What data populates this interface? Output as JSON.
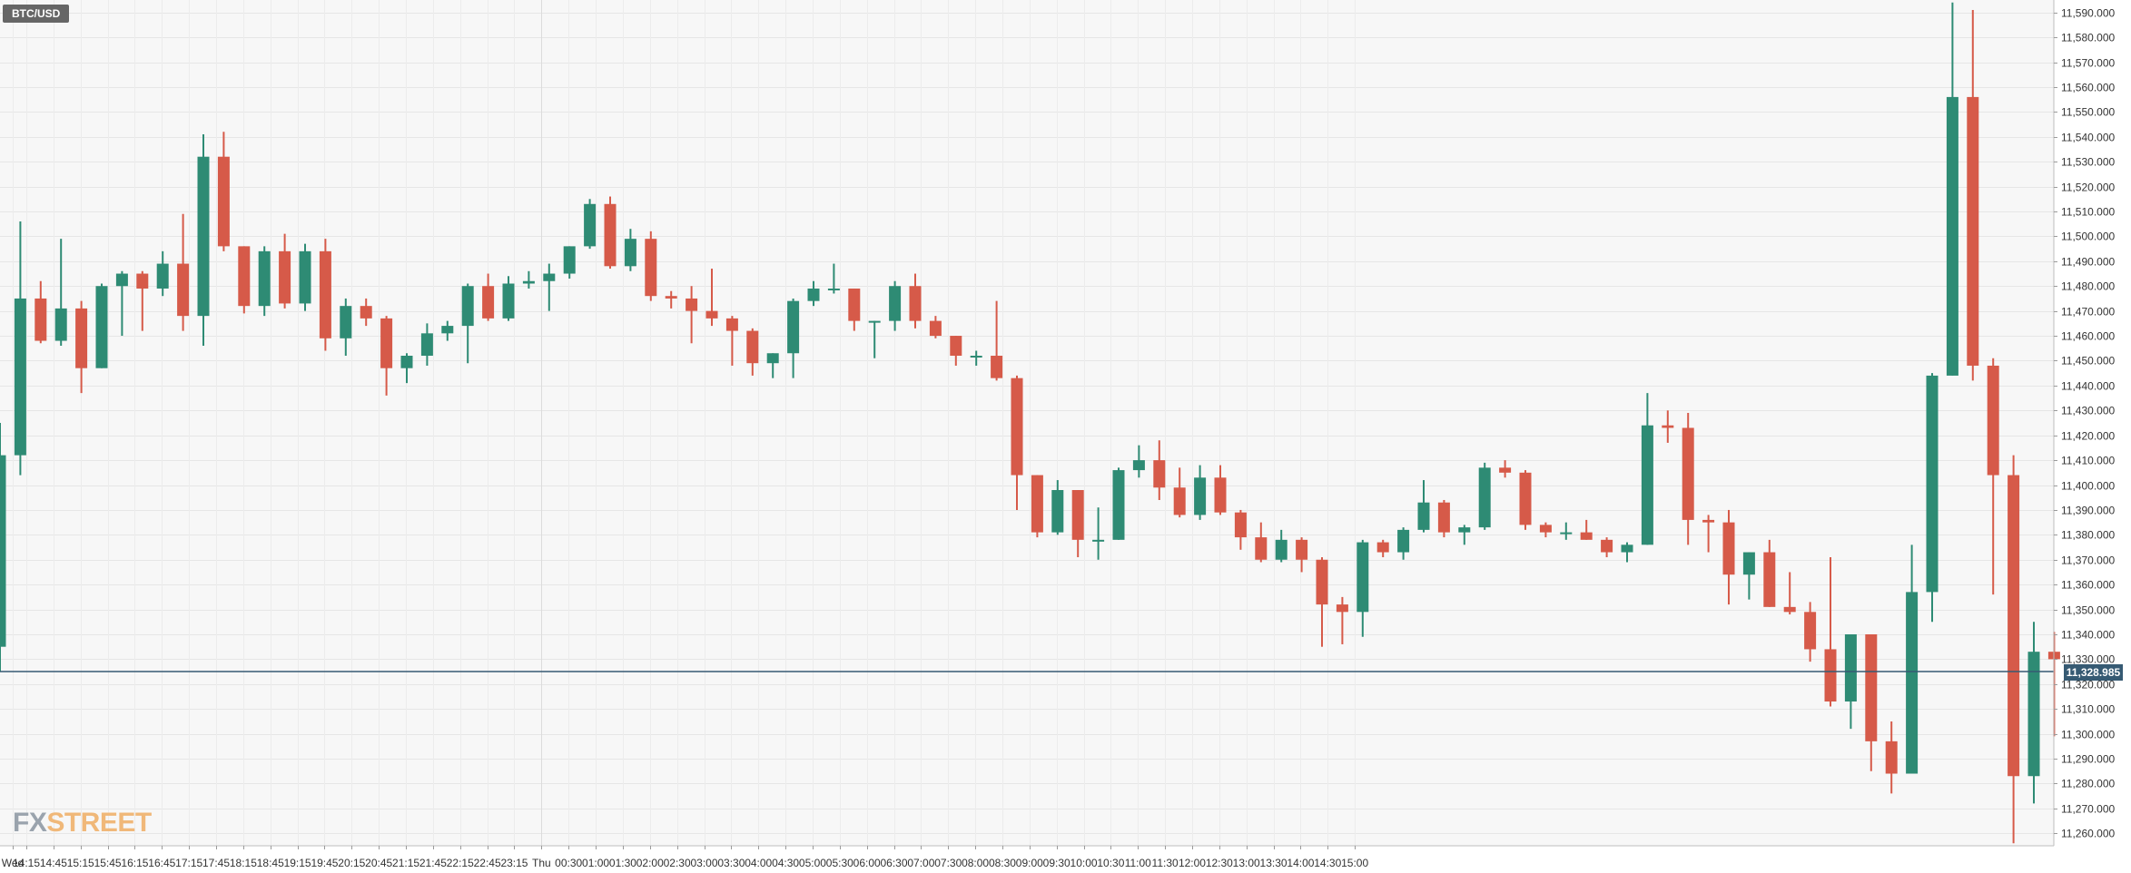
{
  "symbol": "BTC/USD",
  "logo": {
    "fx": "FX",
    "street": "STREET"
  },
  "colors": {
    "up": "#2e8b74",
    "down": "#d65a49",
    "last_price_line": "#365a73",
    "grid": "#e8e8e8",
    "background": "#f7f7f7"
  },
  "chart_data": {
    "type": "candlestick",
    "title": "BTC/USD",
    "interval_minutes": 30,
    "ylim": [
      11255,
      11595
    ],
    "y_ticks": [
      11260,
      11270,
      11280,
      11290,
      11300,
      11310,
      11320,
      11330,
      11340,
      11350,
      11360,
      11370,
      11380,
      11390,
      11400,
      11410,
      11420,
      11430,
      11440,
      11450,
      11460,
      11470,
      11480,
      11490,
      11500,
      11510,
      11520,
      11530,
      11540,
      11550,
      11560,
      11570,
      11580,
      11590
    ],
    "last_price": "11,328.985",
    "x_labels": [
      "Wed",
      "14:15",
      "14:45",
      "15:15",
      "15:45",
      "16:15",
      "16:45",
      "17:15",
      "17:45",
      "18:15",
      "18:45",
      "19:15",
      "19:45",
      "20:15",
      "20:45",
      "21:15",
      "21:45",
      "22:15",
      "22:45",
      "23:15",
      "Thu",
      "00:30",
      "01:00",
      "01:30",
      "02:00",
      "02:30",
      "03:00",
      "03:30",
      "04:00",
      "04:30",
      "05:00",
      "05:30",
      "06:00",
      "06:30",
      "07:00",
      "07:30",
      "08:00",
      "08:30",
      "09:00",
      "09:30",
      "10:00",
      "10:30",
      "11:00",
      "11:30",
      "12:00",
      "12:30",
      "13:00",
      "13:30",
      "14:00",
      "14:30",
      "15:00"
    ],
    "candles": [
      {
        "o": 11335,
        "h": 11425,
        "l": 11325,
        "c": 11412
      },
      {
        "o": 11412,
        "h": 11506,
        "l": 11404,
        "c": 11475
      },
      {
        "o": 11475,
        "h": 11482,
        "l": 11457,
        "c": 11458
      },
      {
        "o": 11458,
        "h": 11499,
        "l": 11456,
        "c": 11471
      },
      {
        "o": 11471,
        "h": 11474,
        "l": 11437,
        "c": 11447
      },
      {
        "o": 11447,
        "h": 11481,
        "l": 11447,
        "c": 11480
      },
      {
        "o": 11480,
        "h": 11486,
        "l": 11460,
        "c": 11485
      },
      {
        "o": 11485,
        "h": 11486,
        "l": 11462,
        "c": 11479
      },
      {
        "o": 11479,
        "h": 11494,
        "l": 11476,
        "c": 11489
      },
      {
        "o": 11489,
        "h": 11509,
        "l": 11462,
        "c": 11468
      },
      {
        "o": 11468,
        "h": 11541,
        "l": 11456,
        "c": 11532
      },
      {
        "o": 11532,
        "h": 11542,
        "l": 11494,
        "c": 11496
      },
      {
        "o": 11496,
        "h": 11496,
        "l": 11469,
        "c": 11472
      },
      {
        "o": 11472,
        "h": 11496,
        "l": 11468,
        "c": 11494
      },
      {
        "o": 11494,
        "h": 11501,
        "l": 11471,
        "c": 11473
      },
      {
        "o": 11473,
        "h": 11497,
        "l": 11470,
        "c": 11494
      },
      {
        "o": 11494,
        "h": 11499,
        "l": 11454,
        "c": 11459
      },
      {
        "o": 11459,
        "h": 11475,
        "l": 11452,
        "c": 11472
      },
      {
        "o": 11472,
        "h": 11475,
        "l": 11464,
        "c": 11467
      },
      {
        "o": 11467,
        "h": 11468,
        "l": 11436,
        "c": 11447
      },
      {
        "o": 11447,
        "h": 11453,
        "l": 11441,
        "c": 11452
      },
      {
        "o": 11452,
        "h": 11465,
        "l": 11448,
        "c": 11461
      },
      {
        "o": 11461,
        "h": 11466,
        "l": 11458,
        "c": 11464
      },
      {
        "o": 11464,
        "h": 11481,
        "l": 11449,
        "c": 11480
      },
      {
        "o": 11480,
        "h": 11485,
        "l": 11466,
        "c": 11467
      },
      {
        "o": 11467,
        "h": 11484,
        "l": 11466,
        "c": 11481
      },
      {
        "o": 11481,
        "h": 11486,
        "l": 11479,
        "c": 11482
      },
      {
        "o": 11482,
        "h": 11489,
        "l": 11470,
        "c": 11485
      },
      {
        "o": 11485,
        "h": 11496,
        "l": 11483,
        "c": 11496
      },
      {
        "o": 11496,
        "h": 11515,
        "l": 11495,
        "c": 11513
      },
      {
        "o": 11513,
        "h": 11516,
        "l": 11487,
        "c": 11488
      },
      {
        "o": 11488,
        "h": 11503,
        "l": 11486,
        "c": 11499
      },
      {
        "o": 11499,
        "h": 11502,
        "l": 11474,
        "c": 11476
      },
      {
        "o": 11476,
        "h": 11478,
        "l": 11471,
        "c": 11475
      },
      {
        "o": 11475,
        "h": 11480,
        "l": 11457,
        "c": 11470
      },
      {
        "o": 11470,
        "h": 11487,
        "l": 11464,
        "c": 11467
      },
      {
        "o": 11467,
        "h": 11468,
        "l": 11448,
        "c": 11462
      },
      {
        "o": 11462,
        "h": 11463,
        "l": 11444,
        "c": 11449
      },
      {
        "o": 11449,
        "h": 11453,
        "l": 11443,
        "c": 11453
      },
      {
        "o": 11453,
        "h": 11475,
        "l": 11443,
        "c": 11474
      },
      {
        "o": 11474,
        "h": 11482,
        "l": 11472,
        "c": 11479
      },
      {
        "o": 11479,
        "h": 11489,
        "l": 11477,
        "c": 11479
      },
      {
        "o": 11479,
        "h": 11479,
        "l": 11462,
        "c": 11466
      },
      {
        "o": 11466,
        "h": 11466,
        "l": 11451,
        "c": 11466
      },
      {
        "o": 11466,
        "h": 11482,
        "l": 11462,
        "c": 11480
      },
      {
        "o": 11480,
        "h": 11485,
        "l": 11463,
        "c": 11466
      },
      {
        "o": 11466,
        "h": 11468,
        "l": 11459,
        "c": 11460
      },
      {
        "o": 11460,
        "h": 11460,
        "l": 11448,
        "c": 11452
      },
      {
        "o": 11452,
        "h": 11454,
        "l": 11448,
        "c": 11452
      },
      {
        "o": 11452,
        "h": 11474,
        "l": 11442,
        "c": 11443
      },
      {
        "o": 11443,
        "h": 11444,
        "l": 11390,
        "c": 11404
      },
      {
        "o": 11404,
        "h": 11404,
        "l": 11379,
        "c": 11381
      },
      {
        "o": 11381,
        "h": 11402,
        "l": 11380,
        "c": 11398
      },
      {
        "o": 11398,
        "h": 11398,
        "l": 11371,
        "c": 11378
      },
      {
        "o": 11378,
        "h": 11391,
        "l": 11370,
        "c": 11378
      },
      {
        "o": 11378,
        "h": 11407,
        "l": 11378,
        "c": 11406
      },
      {
        "o": 11406,
        "h": 11416,
        "l": 11403,
        "c": 11410
      },
      {
        "o": 11410,
        "h": 11418,
        "l": 11394,
        "c": 11399
      },
      {
        "o": 11399,
        "h": 11407,
        "l": 11387,
        "c": 11388
      },
      {
        "o": 11388,
        "h": 11408,
        "l": 11386,
        "c": 11403
      },
      {
        "o": 11403,
        "h": 11408,
        "l": 11388,
        "c": 11389
      },
      {
        "o": 11389,
        "h": 11390,
        "l": 11374,
        "c": 11379
      },
      {
        "o": 11379,
        "h": 11385,
        "l": 11369,
        "c": 11370
      },
      {
        "o": 11370,
        "h": 11382,
        "l": 11369,
        "c": 11378
      },
      {
        "o": 11378,
        "h": 11379,
        "l": 11365,
        "c": 11370
      },
      {
        "o": 11370,
        "h": 11371,
        "l": 11335,
        "c": 11352
      },
      {
        "o": 11352,
        "h": 11355,
        "l": 11336,
        "c": 11349
      },
      {
        "o": 11349,
        "h": 11378,
        "l": 11339,
        "c": 11377
      },
      {
        "o": 11377,
        "h": 11378,
        "l": 11371,
        "c": 11373
      },
      {
        "o": 11373,
        "h": 11383,
        "l": 11370,
        "c": 11382
      },
      {
        "o": 11382,
        "h": 11402,
        "l": 11381,
        "c": 11393
      },
      {
        "o": 11393,
        "h": 11394,
        "l": 11379,
        "c": 11381
      },
      {
        "o": 11381,
        "h": 11384,
        "l": 11376,
        "c": 11383
      },
      {
        "o": 11383,
        "h": 11409,
        "l": 11382,
        "c": 11407
      },
      {
        "o": 11407,
        "h": 11410,
        "l": 11403,
        "c": 11405
      },
      {
        "o": 11405,
        "h": 11406,
        "l": 11382,
        "c": 11384
      },
      {
        "o": 11384,
        "h": 11385,
        "l": 11379,
        "c": 11381
      },
      {
        "o": 11381,
        "h": 11385,
        "l": 11378,
        "c": 11381
      },
      {
        "o": 11381,
        "h": 11386,
        "l": 11378,
        "c": 11378
      },
      {
        "o": 11378,
        "h": 11379,
        "l": 11371,
        "c": 11373
      },
      {
        "o": 11373,
        "h": 11377,
        "l": 11369,
        "c": 11376
      },
      {
        "o": 11376,
        "h": 11437,
        "l": 11376,
        "c": 11424
      },
      {
        "o": 11424,
        "h": 11430,
        "l": 11417,
        "c": 11423
      },
      {
        "o": 11423,
        "h": 11429,
        "l": 11376,
        "c": 11386
      },
      {
        "o": 11386,
        "h": 11388,
        "l": 11373,
        "c": 11385
      },
      {
        "o": 11385,
        "h": 11390,
        "l": 11352,
        "c": 11364
      },
      {
        "o": 11364,
        "h": 11373,
        "l": 11354,
        "c": 11373
      },
      {
        "o": 11373,
        "h": 11378,
        "l": 11351,
        "c": 11351
      },
      {
        "o": 11351,
        "h": 11365,
        "l": 11348,
        "c": 11349
      },
      {
        "o": 11349,
        "h": 11353,
        "l": 11329,
        "c": 11334
      },
      {
        "o": 11334,
        "h": 11371,
        "l": 11311,
        "c": 11313
      },
      {
        "o": 11313,
        "h": 11340,
        "l": 11302,
        "c": 11340
      },
      {
        "o": 11340,
        "h": 11340,
        "l": 11285,
        "c": 11297
      },
      {
        "o": 11297,
        "h": 11305,
        "l": 11276,
        "c": 11284
      },
      {
        "o": 11284,
        "h": 11376,
        "l": 11284,
        "c": 11357
      },
      {
        "o": 11357,
        "h": 11445,
        "l": 11345,
        "c": 11444
      },
      {
        "o": 11444,
        "h": 11594,
        "l": 11444,
        "c": 11556
      },
      {
        "o": 11556,
        "h": 11591,
        "l": 11442,
        "c": 11448
      },
      {
        "o": 11448,
        "h": 11451,
        "l": 11356,
        "c": 11404
      },
      {
        "o": 11404,
        "h": 11412,
        "l": 11256,
        "c": 11283
      },
      {
        "o": 11283,
        "h": 11345,
        "l": 11272,
        "c": 11333
      },
      {
        "o": 11333,
        "h": 11341,
        "l": 11299,
        "c": 11330
      }
    ]
  }
}
